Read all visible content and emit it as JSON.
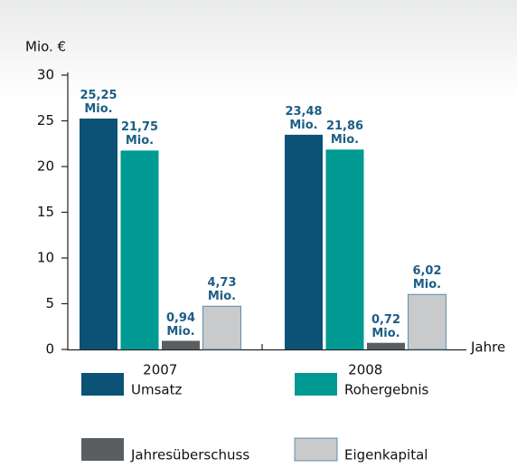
{
  "chart_data": {
    "type": "bar",
    "y_label": "Mio. €",
    "x_label": "Jahre",
    "categories": [
      "2007",
      "2008"
    ],
    "series": [
      {
        "name": "Umsatz",
        "color": "#0b5276",
        "values": [
          25.25,
          23.48
        ],
        "value_labels": [
          "25,25 Mio.",
          "23,48 Mio."
        ]
      },
      {
        "name": "Rohergebnis",
        "color": "#009a93",
        "values": [
          21.75,
          21.86
        ],
        "value_labels": [
          "21,75 Mio.",
          "21,86 Mio."
        ]
      },
      {
        "name": "Jahresüberschuss",
        "color": "#5a5e61",
        "values": [
          0.94,
          0.72
        ],
        "value_labels": [
          "0,94 Mio.",
          "0,72 Mio."
        ]
      },
      {
        "name": "Eigenkapital",
        "color": "#c8cacc",
        "values": [
          4.73,
          6.02
        ],
        "value_labels": [
          "4,73 Mio.",
          "6,02 Mio."
        ]
      }
    ],
    "ylim": [
      0,
      30
    ],
    "yticks": [
      0,
      5,
      10,
      15,
      20,
      25,
      30
    ]
  }
}
